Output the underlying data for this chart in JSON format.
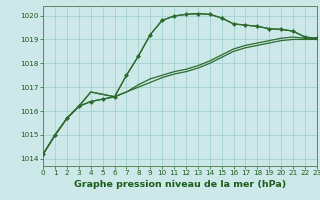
{
  "title": "Graphe pression niveau de la mer (hPa)",
  "x_values": [
    0,
    1,
    2,
    3,
    4,
    5,
    6,
    7,
    8,
    9,
    10,
    11,
    12,
    13,
    14,
    15,
    16,
    17,
    18,
    19,
    20,
    21,
    22,
    23
  ],
  "lines": [
    {
      "y": [
        1014.2,
        1015.0,
        1015.7,
        1016.2,
        1016.4,
        1016.5,
        1016.6,
        1017.5,
        1018.3,
        1019.2,
        1019.8,
        1019.98,
        1020.05,
        1020.08,
        1020.05,
        1019.9,
        1019.65,
        1019.6,
        1019.55,
        1019.45,
        1019.42,
        1019.35,
        1019.1,
        1019.05
      ],
      "color": "#2d6a2d",
      "linewidth": 0.9,
      "marker": "D",
      "markersize": 2.0,
      "zorder": 5
    },
    {
      "y": [
        1014.2,
        1015.0,
        1015.7,
        1016.2,
        1016.4,
        1016.5,
        1016.6,
        1017.5,
        1018.3,
        1019.2,
        1019.8,
        1019.98,
        1020.05,
        1020.08,
        1020.05,
        1019.9,
        1019.65,
        1019.6,
        1019.55,
        1019.45,
        1019.42,
        1019.35,
        1019.1,
        1019.05
      ],
      "color": "#2d6a2d",
      "linewidth": 0.9,
      "marker": null,
      "markersize": 0,
      "zorder": 4
    },
    {
      "y": [
        1014.2,
        1015.0,
        1015.7,
        1016.2,
        1016.8,
        1016.7,
        1016.6,
        1016.8,
        1017.0,
        1017.2,
        1017.4,
        1017.55,
        1017.65,
        1017.8,
        1018.0,
        1018.25,
        1018.5,
        1018.65,
        1018.75,
        1018.85,
        1018.95,
        1019.0,
        1019.0,
        1019.0
      ],
      "color": "#2d6a2d",
      "linewidth": 0.9,
      "marker": null,
      "markersize": 0,
      "zorder": 3
    },
    {
      "y": [
        1014.2,
        1015.0,
        1015.7,
        1016.2,
        1016.8,
        1016.7,
        1016.6,
        1016.8,
        1017.1,
        1017.35,
        1017.5,
        1017.65,
        1017.75,
        1017.9,
        1018.1,
        1018.35,
        1018.6,
        1018.75,
        1018.85,
        1018.95,
        1019.05,
        1019.1,
        1019.05,
        1019.05
      ],
      "color": "#2d6a2d",
      "linewidth": 0.9,
      "marker": null,
      "markersize": 0,
      "zorder": 3
    }
  ],
  "ylim": [
    1013.7,
    1020.4
  ],
  "xlim": [
    0,
    23
  ],
  "yticks": [
    1014,
    1015,
    1016,
    1017,
    1018,
    1019,
    1020
  ],
  "xticks": [
    0,
    1,
    2,
    3,
    4,
    5,
    6,
    7,
    8,
    9,
    10,
    11,
    12,
    13,
    14,
    15,
    16,
    17,
    18,
    19,
    20,
    21,
    22,
    23
  ],
  "bg_color": "#cce8e8",
  "grid_color": "#9ecece",
  "border_color": "#5a8a5a",
  "label_color": "#1a5c1a",
  "title_color": "#1a5c1a",
  "title_fontsize": 6.8,
  "tick_fontsize": 5.2
}
